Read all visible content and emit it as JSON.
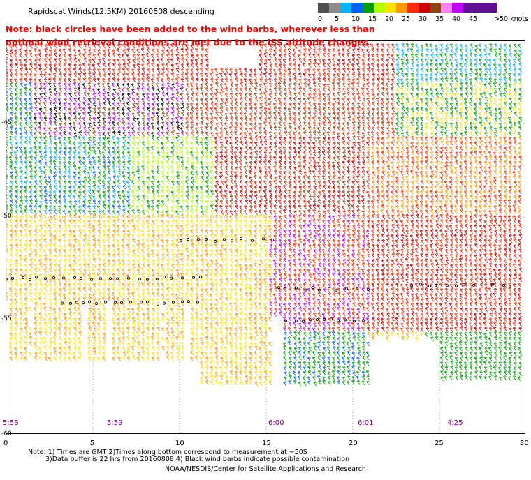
{
  "title": "Rapidscat Winds(12.5KM) 20160808 descending",
  "note": "Note: black circles have been added to the wind barbs, wherever less than optimal wind retrieval conditions are met due to the ISS altitude changes.",
  "legend": {
    "unit": "knots",
    "labels": [
      "0",
      "5",
      "10",
      "15",
      "20",
      "25",
      "30",
      "35",
      "40",
      "45",
      ">50 knots"
    ],
    "colors": [
      "#505050",
      "#8c8c8c",
      "#00b4ff",
      "#0060ff",
      "#00a000",
      "#b4ff00",
      "#ffe000",
      "#ff9900",
      "#ff2a00",
      "#cc0000",
      "#8b4513",
      "#ff80ff",
      "#c000ff",
      "#601090"
    ]
  },
  "map": {
    "lon_labels": [
      "0",
      "5",
      "10",
      "15",
      "20",
      "25",
      "30"
    ],
    "lat_labels": [
      "-45",
      "-50",
      "-55",
      "-60"
    ],
    "times": [
      "5:58",
      "5:59",
      "6:00",
      "6:01",
      "4:25"
    ],
    "lon_range": [
      0,
      30
    ],
    "lat_range": [
      -40,
      -60
    ]
  },
  "footnote_line1": "Note: 1) Times are GMT 2)Times along bottom correspond to measurement at ~50S",
  "footnote_line2": "3)Data buffer is 22 hrs from 20160808 4) Black wind barbs indicate possible contamination",
  "credit": "NOAA/NESDIS/Center for Satellite Applications and Research"
}
